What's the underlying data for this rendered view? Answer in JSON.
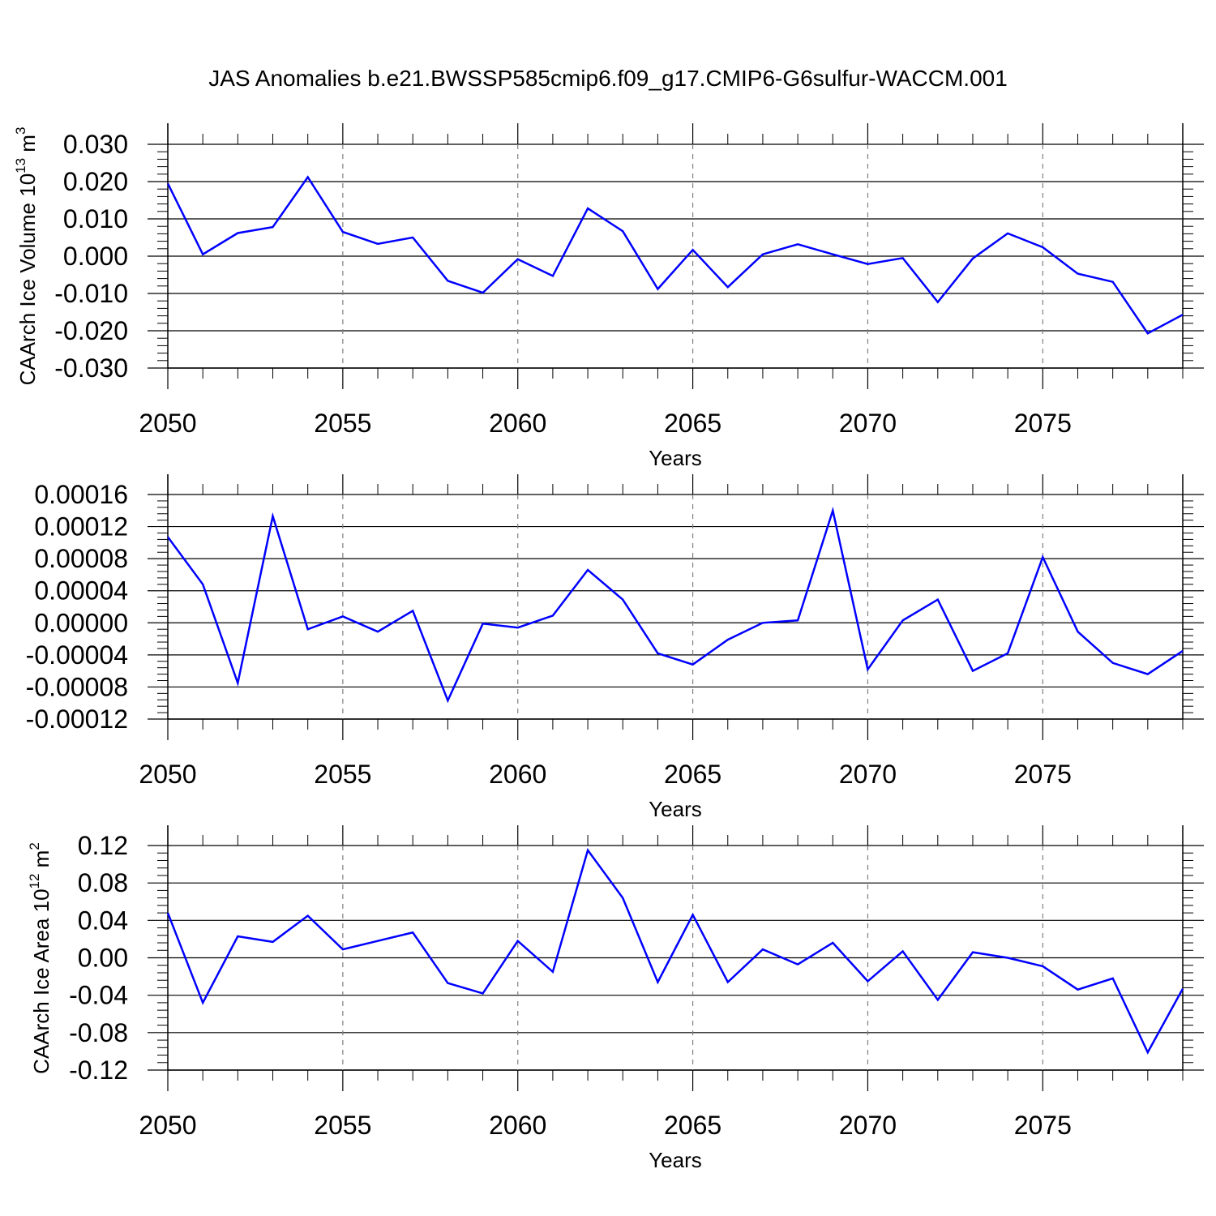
{
  "title": "JAS Anomalies b.e21.BWSSP585cmip6.f09_g17.CMIP6-G6sulfur-WACCM.001",
  "colors": {
    "line": "#0000ff",
    "frame": "#000000",
    "grid": "#808080"
  },
  "chart_data": [
    {
      "type": "line",
      "title": "",
      "xlabel": "Years",
      "ylabel": "CAArch Ice Volume 10",
      "ylabel_sup": "13",
      "ylabel_unit": " m",
      "ylabel_unit_sup": "3",
      "xlim": [
        2050,
        2079
      ],
      "ylim": [
        -0.03,
        0.03
      ],
      "xticks": [
        "2050",
        "2055",
        "2060",
        "2065",
        "2070",
        "2075"
      ],
      "yticks": [
        "0.030",
        "0.020",
        "0.010",
        "0.000",
        "-0.010",
        "-0.020",
        "-0.030"
      ],
      "grid": "vertical dashed at major x ticks",
      "x": [
        2050,
        2051,
        2052,
        2053,
        2054,
        2055,
        2056,
        2057,
        2058,
        2059,
        2060,
        2061,
        2062,
        2063,
        2064,
        2065,
        2066,
        2067,
        2068,
        2069,
        2070,
        2071,
        2072,
        2073,
        2074,
        2075,
        2076,
        2077,
        2078,
        2079
      ],
      "values": [
        0.0195,
        0.0005,
        0.0062,
        0.0078,
        0.0212,
        0.0065,
        0.0033,
        0.005,
        -0.0066,
        -0.0098,
        -0.0008,
        -0.0053,
        0.0128,
        0.0067,
        -0.0088,
        0.0017,
        -0.0083,
        0.0005,
        0.0032,
        0.0005,
        -0.0021,
        -0.0005,
        -0.0123,
        -0.0006,
        0.0061,
        0.0024,
        -0.0047,
        -0.0069,
        -0.0207,
        -0.0157
      ]
    },
    {
      "type": "line",
      "title": "",
      "xlabel": "Years",
      "ylabel": "",
      "xlim": [
        2050,
        2079
      ],
      "ylim": [
        -0.00012,
        0.00016
      ],
      "xticks": [
        "2050",
        "2055",
        "2060",
        "2065",
        "2070",
        "2075"
      ],
      "yticks": [
        "0.00016",
        "0.00012",
        "0.00008",
        "0.00004",
        "0.00000",
        "-0.00004",
        "-0.00008",
        "-0.00012"
      ],
      "grid": "vertical dashed at major x ticks",
      "x": [
        2050,
        2051,
        2052,
        2053,
        2054,
        2055,
        2056,
        2057,
        2058,
        2059,
        2060,
        2061,
        2062,
        2063,
        2064,
        2065,
        2066,
        2067,
        2068,
        2069,
        2070,
        2071,
        2072,
        2073,
        2074,
        2075,
        2076,
        2077,
        2078,
        2079
      ],
      "values": [
        0.000107,
        4.8e-05,
        -7.5e-05,
        0.000133,
        -8e-06,
        8e-06,
        -1.1e-05,
        1.5e-05,
        -9.7e-05,
        -1e-06,
        -6e-06,
        9e-06,
        6.6e-05,
        2.9e-05,
        -3.8e-05,
        -5.2e-05,
        -2.1e-05,
        0.0,
        3e-06,
        0.00014,
        -5.8e-05,
        3e-06,
        2.9e-05,
        -6e-05,
        -3.8e-05,
        8.2e-05,
        -1.1e-05,
        -5e-05,
        -6.4e-05,
        -3.5e-05
      ]
    },
    {
      "type": "line",
      "title": "",
      "xlabel": "Years",
      "ylabel": "CAArch Ice Area 10",
      "ylabel_sup": "12",
      "ylabel_unit": " m",
      "ylabel_unit_sup": "2",
      "xlim": [
        2050,
        2079
      ],
      "ylim": [
        -0.12,
        0.12
      ],
      "xticks": [
        "2050",
        "2055",
        "2060",
        "2065",
        "2070",
        "2075"
      ],
      "yticks": [
        "0.12",
        "0.08",
        "0.04",
        "0.00",
        "-0.04",
        "-0.08",
        "-0.12"
      ],
      "grid": "vertical dashed at major x ticks",
      "x": [
        2050,
        2051,
        2052,
        2053,
        2054,
        2055,
        2056,
        2057,
        2058,
        2059,
        2060,
        2061,
        2062,
        2063,
        2064,
        2065,
        2066,
        2067,
        2068,
        2069,
        2070,
        2071,
        2072,
        2073,
        2074,
        2075,
        2076,
        2077,
        2078,
        2079
      ],
      "values": [
        0.048,
        -0.048,
        0.023,
        0.017,
        0.045,
        0.009,
        0.018,
        0.027,
        -0.027,
        -0.038,
        0.018,
        -0.015,
        0.115,
        0.064,
        -0.026,
        0.046,
        -0.026,
        0.009,
        -0.007,
        0.016,
        -0.025,
        0.007,
        -0.045,
        0.006,
        0.0,
        -0.009,
        -0.034,
        -0.022,
        -0.101,
        -0.033
      ]
    }
  ]
}
